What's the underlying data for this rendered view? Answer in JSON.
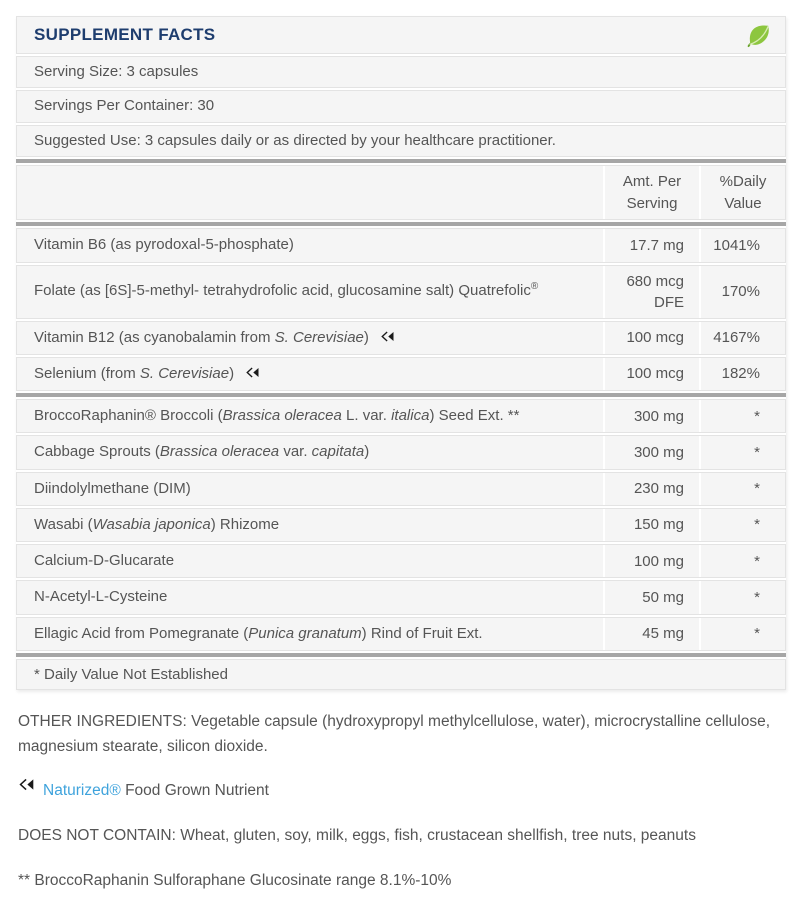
{
  "colors": {
    "title_navy": "#1e3d6e",
    "body_text": "#555555",
    "row_background": "#f5f5f5",
    "row_border": "#e3e3e3",
    "thick_divider": "#a6a6a6",
    "leaf_green": "#8dc63f",
    "naturized_link_blue": "#3fa3dc",
    "icon_black": "#1a1a1a"
  },
  "icons": {
    "header_icon": "leaf-icon",
    "row_marker": "naturized-rewind-icon"
  },
  "panel": {
    "title": "SUPPLEMENT FACTS",
    "serving_size": "Serving Size: 3 capsules",
    "servings_per_container": "Servings Per Container: 30",
    "suggested_use": "Suggested Use: 3 capsules daily or as directed by your healthcare practitioner.",
    "columns": {
      "amount": "Amt. Per Serving",
      "daily_value": "%Daily Value"
    },
    "groups": [
      [
        {
          "name": [
            {
              "text": "Vitamin B6 (as pyrodoxal-5-phosphate)"
            }
          ],
          "amount": "17.7 mg",
          "daily_value": "1041%",
          "naturized_icon": false
        },
        {
          "name": [
            {
              "text": "Folate (as [6S]-5-methyl- tetrahydrofolic acid, glucosamine salt) Quatrefolic"
            },
            {
              "text": "®",
              "sup": true
            }
          ],
          "amount": "680 mcg DFE",
          "daily_value": "170%",
          "naturized_icon": false
        },
        {
          "name": [
            {
              "text": "Vitamin B12 (as cyanobalamin from "
            },
            {
              "text": "S. Cerevisiae",
              "italic": true
            },
            {
              "text": ")"
            }
          ],
          "amount": "100 mcg",
          "daily_value": "4167%",
          "naturized_icon": true
        },
        {
          "name": [
            {
              "text": "Selenium (from "
            },
            {
              "text": "S. Cerevisiae",
              "italic": true
            },
            {
              "text": ")"
            }
          ],
          "amount": "100 mcg",
          "daily_value": "182%",
          "naturized_icon": true
        }
      ],
      [
        {
          "name": [
            {
              "text": "BroccoRaphanin® Broccoli ("
            },
            {
              "text": "Brassica oleracea",
              "italic": true
            },
            {
              "text": " L. var. "
            },
            {
              "text": "italica",
              "italic": true
            },
            {
              "text": ") Seed Ext. **"
            }
          ],
          "amount": "300 mg",
          "daily_value": "*",
          "naturized_icon": false
        },
        {
          "name": [
            {
              "text": "Cabbage Sprouts ("
            },
            {
              "text": "Brassica oleracea",
              "italic": true
            },
            {
              "text": " var. "
            },
            {
              "text": "capitata",
              "italic": true
            },
            {
              "text": ")"
            }
          ],
          "amount": "300 mg",
          "daily_value": "*",
          "naturized_icon": false
        },
        {
          "name": [
            {
              "text": "Diindolylmethane (DIM)"
            }
          ],
          "amount": "230 mg",
          "daily_value": "*",
          "naturized_icon": false
        },
        {
          "name": [
            {
              "text": "Wasabi ("
            },
            {
              "text": "Wasabia japonica",
              "italic": true
            },
            {
              "text": ") Rhizome"
            }
          ],
          "amount": "150 mg",
          "daily_value": "*",
          "naturized_icon": false
        },
        {
          "name": [
            {
              "text": "Calcium-D-Glucarate"
            }
          ],
          "amount": "100 mg",
          "daily_value": "*",
          "naturized_icon": false
        },
        {
          "name": [
            {
              "text": "N-Acetyl-L-Cysteine"
            }
          ],
          "amount": "50 mg",
          "daily_value": "*",
          "naturized_icon": false
        },
        {
          "name": [
            {
              "text": "Ellagic Acid from Pomegranate ("
            },
            {
              "text": "Punica granatum",
              "italic": true
            },
            {
              "text": ") Rind of Fruit Ext."
            }
          ],
          "amount": "45 mg",
          "daily_value": "*",
          "naturized_icon": false
        }
      ]
    ],
    "footnote": "* Daily Value Not Established"
  },
  "footer": {
    "other_ingredients": "OTHER INGREDIENTS: Vegetable capsule (hydroxypropyl methylcellulose, water), microcrystalline cellulose, magnesium stearate, silicon dioxide.",
    "naturized_brand": "Naturized®",
    "naturized_rest": " Food Grown Nutrient",
    "does_not_contain": "DOES NOT CONTAIN: Wheat, gluten, soy, milk, eggs, fish, crustacean shellfish, tree nuts, peanuts",
    "broccoraphanin_note": "** BroccoRaphanin Sulforaphane Glucosinate range 8.1%-10%"
  }
}
